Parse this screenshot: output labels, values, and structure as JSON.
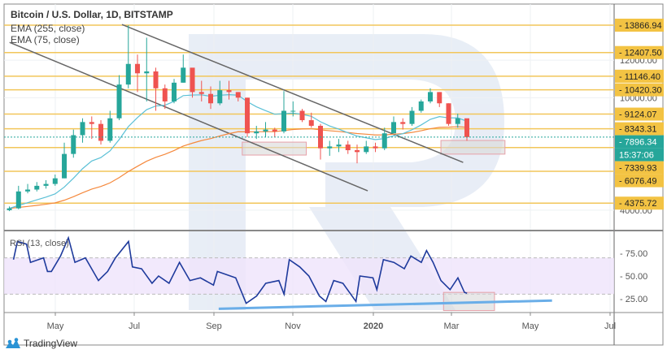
{
  "header": {
    "title": "Bitcoin / U.S. Dollar, 1D, BITSTAMP",
    "indicators": [
      "EMA (255, close)",
      "EMA (75, close)"
    ],
    "rsi_label": "RSI (13, close)"
  },
  "brand": {
    "name": "TradingView",
    "icon": "tradingview-logo-icon"
  },
  "colors": {
    "up": "#26a69a",
    "down": "#ef5350",
    "ema75": "#5bc0d6",
    "ema255": "#f5893d",
    "level": "#f2c65a",
    "label_bg": "#f3c343",
    "last_price_bg": "#26a69a",
    "channel": "#666666",
    "rsi_line": "#1e3a9c",
    "rsi_band": "#efe4fb",
    "rsi_trend": "#6aaee8",
    "zone_fill": "#d9d9d9",
    "zone_border": "#e6a0a8",
    "watermark": "#e4ebf5"
  },
  "chart_data": [
    {
      "type": "candlestick",
      "title": "Bitcoin / U.S. Dollar, 1D, BITSTAMP",
      "y_scale": "linear",
      "ylim": [
        3700,
        14400
      ],
      "x_ticks": [
        "May",
        "Jul",
        "Sep",
        "Nov",
        "2020",
        "Mar",
        "May",
        "Jul"
      ],
      "y_ticks": [
        4000,
        10000,
        12000
      ],
      "grid": true,
      "dates": [
        "2019-03-25",
        "2019-04-01",
        "2019-04-08",
        "2019-04-15",
        "2019-04-22",
        "2019-04-29",
        "2019-05-06",
        "2019-05-13",
        "2019-05-20",
        "2019-05-27",
        "2019-06-03",
        "2019-06-10",
        "2019-06-17",
        "2019-06-24",
        "2019-07-01",
        "2019-07-08",
        "2019-07-15",
        "2019-07-22",
        "2019-07-29",
        "2019-08-05",
        "2019-08-12",
        "2019-08-19",
        "2019-08-26",
        "2019-09-02",
        "2019-09-09",
        "2019-09-16",
        "2019-09-23",
        "2019-09-30",
        "2019-10-07",
        "2019-10-14",
        "2019-10-21",
        "2019-10-28",
        "2019-11-04",
        "2019-11-11",
        "2019-11-18",
        "2019-11-25",
        "2019-12-02",
        "2019-12-09",
        "2019-12-16",
        "2019-12-23",
        "2019-12-30",
        "2020-01-06",
        "2020-01-13",
        "2020-01-20",
        "2020-01-27",
        "2020-02-03",
        "2020-02-10",
        "2020-02-17",
        "2020-02-24",
        "2020-03-02",
        "2020-03-09"
      ],
      "close": [
        4100,
        5000,
        5100,
        5300,
        5400,
        5700,
        7000,
        8000,
        8700,
        8600,
        7700,
        8900,
        10700,
        11800,
        11300,
        11400,
        10500,
        9800,
        10800,
        11600,
        10300,
        10200,
        9700,
        10400,
        10300,
        10000,
        8100,
        8200,
        8300,
        8200,
        9300,
        9300,
        8800,
        8500,
        7300,
        7400,
        7500,
        7200,
        7100,
        7400,
        7300,
        8100,
        8700,
        8600,
        9300,
        9800,
        10300,
        9700,
        8600,
        8900,
        7900
      ],
      "high": [
        4200,
        5300,
        5400,
        5500,
        5600,
        5900,
        7600,
        8300,
        8900,
        9000,
        8800,
        9300,
        11200,
        13866,
        12300,
        13200,
        11600,
        10700,
        11000,
        12300,
        11500,
        10900,
        10600,
        10900,
        10900,
        10300,
        10000,
        8500,
        8700,
        8400,
        10350,
        9800,
        9400,
        9200,
        8600,
        7700,
        7800,
        7700,
        7500,
        7700,
        7600,
        8400,
        9000,
        8900,
        9500,
        9900,
        10500,
        10300,
        9700,
        9150,
        8200
      ],
      "low": [
        3950,
        4050,
        4900,
        5000,
        5150,
        5300,
        5700,
        6800,
        7600,
        7800,
        7500,
        7600,
        8800,
        10500,
        10300,
        9800,
        9300,
        9400,
        9700,
        10800,
        10000,
        9800,
        9400,
        9600,
        9900,
        9800,
        7900,
        7800,
        7900,
        7900,
        8100,
        9000,
        8700,
        8400,
        6700,
        6900,
        7100,
        7000,
        6500,
        7000,
        7100,
        7200,
        8100,
        8300,
        8500,
        9200,
        9700,
        9500,
        8500,
        8400,
        7700
      ],
      "first_open": 4000,
      "indicators": [
        {
          "name": "EMA (255, close)",
          "period": 255
        },
        {
          "name": "EMA (75, close)",
          "period": 75
        }
      ],
      "levels": [
        13866.94,
        12407.5,
        11146.4,
        10420.3,
        9124.07,
        8343.31,
        7339.93,
        6076.49,
        4375.72
      ],
      "last_price": 7896.34,
      "countdown": "15:37:06",
      "channel_lines": [
        {
          "from": [
            "2019-06-21",
            13900
          ],
          "to": [
            "2020-03-08",
            6550
          ]
        },
        {
          "from": [
            "2019-03-27",
            12950
          ],
          "to": [
            "2019-12-26",
            5035
          ]
        }
      ],
      "zones": [
        {
          "from": [
            "2019-09-21",
            7630
          ],
          "to": [
            "2019-11-09",
            6940
          ]
        },
        {
          "from": [
            "2020-02-20",
            7720
          ],
          "to": [
            "2020-04-09",
            6990
          ]
        }
      ]
    },
    {
      "type": "line",
      "title": "RSI (13, close)",
      "ylim": [
        5,
        97
      ],
      "y_ticks": [
        25,
        50,
        75
      ],
      "bands": [
        30,
        70
      ],
      "x": [
        "2019-03-30",
        "2019-04-02",
        "2019-04-09",
        "2019-04-12",
        "2019-04-22",
        "2019-04-25",
        "2019-04-28",
        "2019-05-05",
        "2019-05-11",
        "2019-05-16",
        "2019-05-24",
        "2019-06-03",
        "2019-06-10",
        "2019-06-16",
        "2019-06-26",
        "2019-06-29",
        "2019-07-06",
        "2019-07-14",
        "2019-07-19",
        "2019-07-27",
        "2019-08-04",
        "2019-08-12",
        "2019-08-20",
        "2019-08-30",
        "2019-09-02",
        "2019-09-16",
        "2019-09-24",
        "2019-10-02",
        "2019-10-09",
        "2019-10-19",
        "2019-10-23",
        "2019-10-27",
        "2019-11-04",
        "2019-11-11",
        "2019-11-19",
        "2019-11-24",
        "2019-11-30",
        "2019-12-07",
        "2019-12-17",
        "2019-12-20",
        "2019-12-30",
        "2020-01-02",
        "2020-01-07",
        "2020-01-15",
        "2020-01-23",
        "2020-01-28",
        "2020-02-05",
        "2020-02-09",
        "2020-02-14",
        "2020-02-20",
        "2020-02-27",
        "2020-03-04",
        "2020-03-09",
        "2020-03-11"
      ],
      "y": [
        68,
        88,
        85,
        65,
        70,
        55,
        55,
        72,
        92,
        65,
        70,
        45,
        55,
        70,
        88,
        60,
        58,
        42,
        50,
        42,
        65,
        45,
        48,
        40,
        55,
        48,
        20,
        28,
        42,
        45,
        30,
        68,
        60,
        50,
        28,
        22,
        45,
        42,
        22,
        50,
        48,
        35,
        68,
        65,
        58,
        72,
        65,
        78,
        65,
        45,
        35,
        48,
        32,
        31
      ],
      "trend_line": {
        "from": [
          "2019-09-03",
          14
        ],
        "to": [
          "2020-05-15",
          23
        ]
      },
      "zone": {
        "from": [
          "2020-02-22",
          32
        ],
        "to": [
          "2020-04-01",
          12
        ]
      }
    }
  ]
}
